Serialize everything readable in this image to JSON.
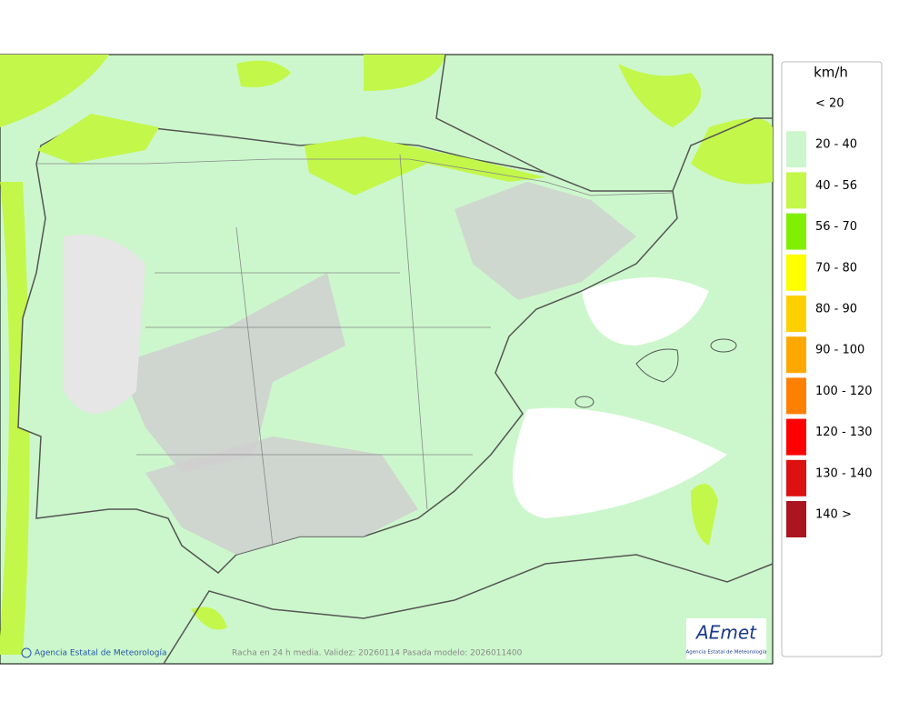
{
  "legend": {
    "title": "km/h",
    "items": [
      {
        "label": "< 20",
        "color": "#ffffff"
      },
      {
        "label": "20 - 40",
        "color": "#ccf7cc"
      },
      {
        "label": "40 - 56",
        "color": "#c3f74a"
      },
      {
        "label": "56 - 70",
        "color": "#80f000"
      },
      {
        "label": "70 - 80",
        "color": "#ffff00"
      },
      {
        "label": "80 - 90",
        "color": "#ffd000"
      },
      {
        "label": "90 - 100",
        "color": "#ffa800"
      },
      {
        "label": "100 - 120",
        "color": "#ff8000"
      },
      {
        "label": "120 - 130",
        "color": "#ff0000"
      },
      {
        "label": "130 - 140",
        "color": "#dd1111"
      },
      {
        "label": "140 >",
        "color": "#aa1520"
      }
    ]
  },
  "footer": {
    "credit": "Agencia Estatal de Meteorología",
    "caption": "Racha en 24 h media. Validez: 20260114 Pasada modelo: 2026011400"
  },
  "logo": {
    "text": "AEmet",
    "subtitle": "Agencia Estatal de Meteorología"
  }
}
